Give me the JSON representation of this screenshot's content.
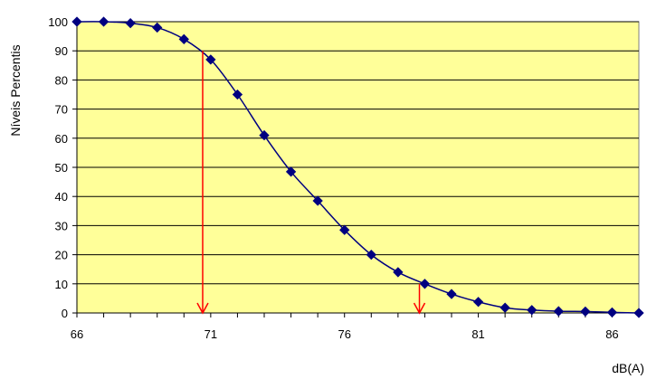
{
  "chart_data": {
    "type": "line",
    "title": "",
    "xlabel": "dB(A)",
    "ylabel": "Níveis Percentis",
    "xlim": [
      66,
      87
    ],
    "ylim": [
      0,
      100
    ],
    "x_ticks": [
      66,
      71,
      76,
      81,
      86
    ],
    "y_ticks": [
      0,
      10,
      20,
      30,
      40,
      50,
      60,
      70,
      80,
      90,
      100
    ],
    "grid": "horizontal",
    "legend": "none",
    "colors": {
      "plot_background": "#ffff99",
      "series_line": "#000080",
      "series_marker": "#000080",
      "annotation_arrows": "#ff0000",
      "gridlines": "#000000"
    },
    "series": [
      {
        "x": [
          66,
          67,
          68,
          69,
          70,
          71,
          72,
          73,
          74,
          75,
          76,
          77,
          78,
          79,
          80,
          81,
          82,
          83,
          84,
          85,
          86,
          87
        ],
        "y": [
          100,
          100,
          99.5,
          98,
          94,
          87,
          75,
          61,
          48.5,
          38.5,
          28.5,
          20,
          14,
          10,
          6.5,
          3.8,
          1.8,
          1,
          0.6,
          0.5,
          0.2,
          0
        ]
      }
    ],
    "annotations": [
      {
        "type": "arrow",
        "x": 70.7,
        "y_from": 90,
        "y_to": 0
      },
      {
        "type": "arrow",
        "x": 78.8,
        "y_from": 10,
        "y_to": 0
      }
    ]
  }
}
